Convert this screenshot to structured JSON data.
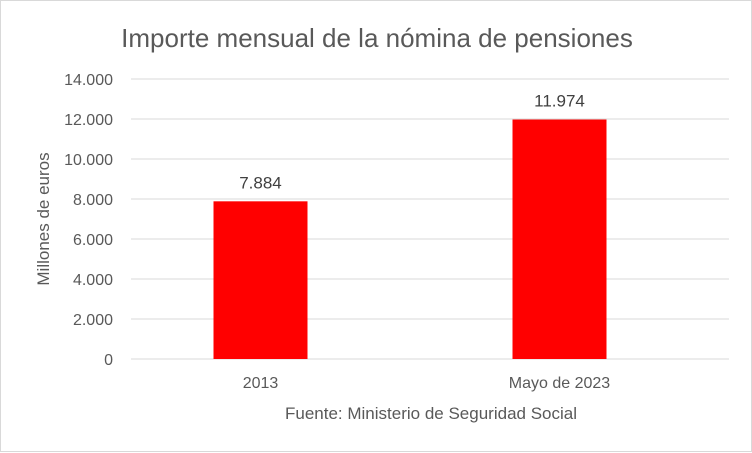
{
  "chart_data": {
    "type": "bar",
    "title": "Importe mensual de la nómina de pensiones",
    "xlabel": "Fuente: Ministerio de Seguridad Social",
    "ylabel": "Millones de euros",
    "categories": [
      "2013",
      "Mayo de 2023"
    ],
    "values": [
      7884,
      11974
    ],
    "data_labels": [
      "7.884",
      "11.974"
    ],
    "ylim": [
      0,
      14000
    ],
    "yticks": [
      0,
      2000,
      4000,
      6000,
      8000,
      10000,
      12000,
      14000
    ],
    "ytick_labels": [
      "0",
      "2.000",
      "4.000",
      "6.000",
      "8.000",
      "10.000",
      "12.000",
      "14.000"
    ],
    "grid": true,
    "bar_color": "#ff0000",
    "grid_color": "#d9d9d9",
    "text_color": "#595959"
  }
}
